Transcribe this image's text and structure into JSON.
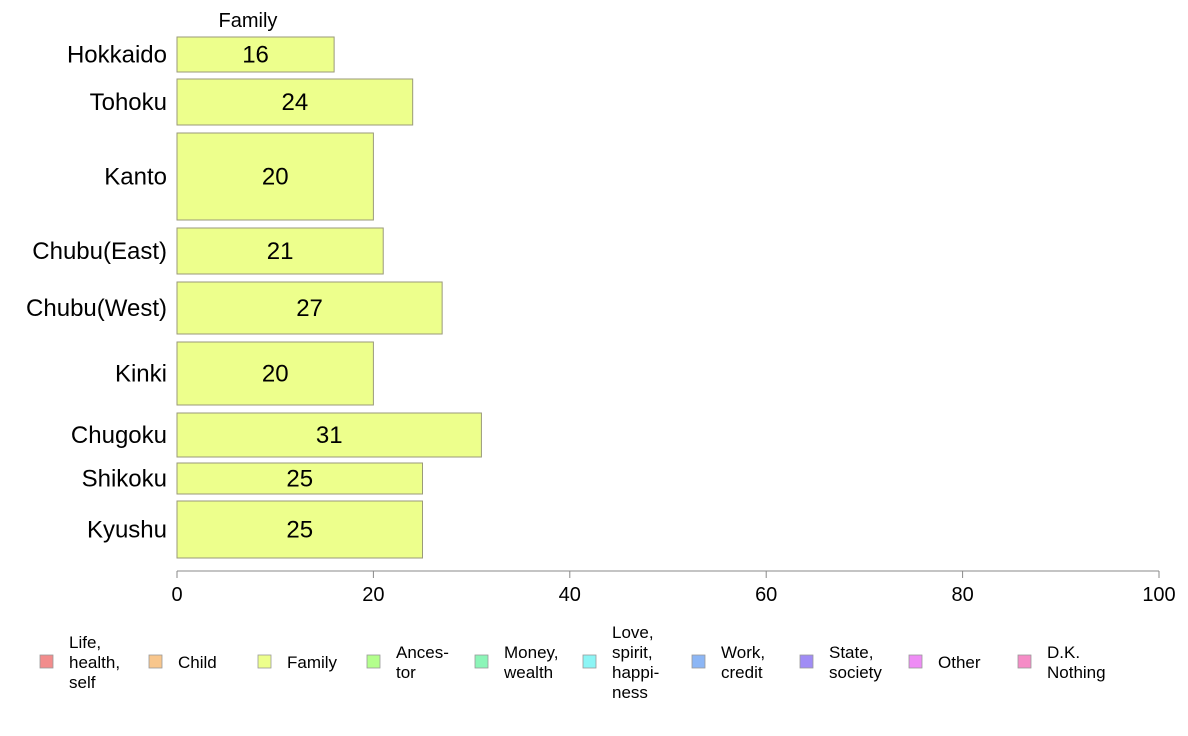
{
  "chart_data": {
    "type": "bar",
    "orientation": "horizontal",
    "column_title": "Family",
    "categories": [
      "Hokkaido",
      "Tohoku",
      "Kanto",
      "Chubu(East)",
      "Chubu(West)",
      "Kinki",
      "Chugoku",
      "Shikoku",
      "Kyushu"
    ],
    "series": [
      {
        "name": "Family",
        "values": [
          16,
          24,
          20,
          21,
          27,
          20,
          31,
          25,
          25
        ],
        "color": "#edff8c"
      }
    ],
    "value_labels": [
      "16",
      "24",
      "20",
      "21",
      "27",
      "20",
      "31",
      "25",
      "25"
    ],
    "xlim": [
      0,
      100
    ],
    "xticks": [
      0,
      20,
      40,
      60,
      80,
      100
    ],
    "grid": false,
    "bar_border_color": "#9a9a7a",
    "axis_color": "#888888",
    "legend": {
      "position": "bottom",
      "items": [
        {
          "lines": [
            "Life,",
            "health,",
            "self"
          ],
          "color": "#f28c8c"
        },
        {
          "lines": [
            "Child"
          ],
          "color": "#f8c68c"
        },
        {
          "lines": [
            "Family"
          ],
          "color": "#edff8c"
        },
        {
          "lines": [
            "Ances-",
            "tor"
          ],
          "color": "#b3ff8c"
        },
        {
          "lines": [
            "Money,",
            "wealth"
          ],
          "color": "#8cf5b8"
        },
        {
          "lines": [
            "Love,",
            "spirit,",
            "happi-",
            "ness"
          ],
          "color": "#8cf5f5"
        },
        {
          "lines": [
            "Work,",
            "credit"
          ],
          "color": "#8cb6f5"
        },
        {
          "lines": [
            "State,",
            "society"
          ],
          "color": "#a08cf5"
        },
        {
          "lines": [
            "Other"
          ],
          "color": "#ee8cf5"
        },
        {
          "lines": [
            "D.K.",
            "Nothing"
          ],
          "color": "#f58cc6"
        }
      ]
    }
  }
}
